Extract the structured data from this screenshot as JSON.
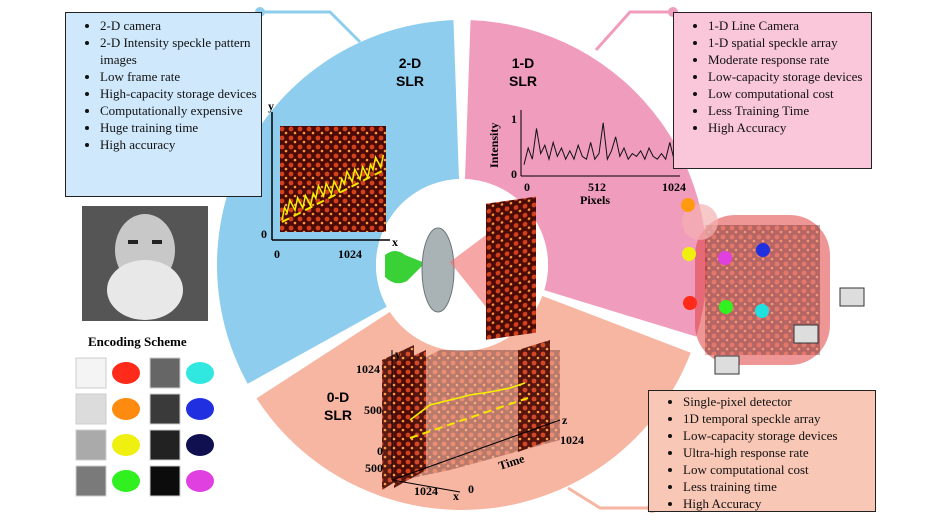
{
  "sectors": {
    "two_d": {
      "label_line1": "2-D",
      "label_line2": "SLR",
      "color": "#8ecdee"
    },
    "one_d": {
      "label_line1": "1-D",
      "label_line2": "SLR",
      "color": "#f09cbc"
    },
    "zero_d": {
      "label_line1": "0-D",
      "label_line2": "SLR",
      "color": "#f6b6a2"
    }
  },
  "boxes": {
    "two_d": {
      "color": "#cfe8fb",
      "items": [
        "2-D camera",
        "2-D Intensity speckle pattern images",
        "Low frame rate",
        "High-capacity storage devices",
        "Computationally expensive",
        "Huge training time",
        "High accuracy"
      ]
    },
    "one_d": {
      "color": "#f9c6da",
      "items": [
        "1-D Line Camera",
        "1-D spatial speckle array",
        "Moderate response rate",
        "Low-capacity storage devices",
        "Low computational cost",
        "Less Training Time",
        "High Accuracy"
      ]
    },
    "zero_d": {
      "color": "#f8c7b6",
      "items": [
        "Single-pixel detector",
        "1D temporal speckle array",
        "Low-capacity storage devices",
        "Ultra-high response rate",
        "Low computational cost",
        "Less training time",
        "High Accuracy"
      ]
    }
  },
  "plot_2d": {
    "y_axis": "y",
    "x_axis": "x",
    "y_max": "1024",
    "x_max": "1024",
    "origin": "0",
    "origin_x": "0"
  },
  "plot_1d": {
    "ylabel": "Intensity",
    "xlabel": "Pixels",
    "y_ticks": [
      "0",
      "1"
    ],
    "x_ticks": [
      "0",
      "512",
      "1024"
    ],
    "signal": [
      0.2,
      0.5,
      0.3,
      0.85,
      0.4,
      0.55,
      0.3,
      0.6,
      0.35,
      0.5,
      0.3,
      0.45,
      0.3,
      0.55,
      0.35,
      0.3,
      0.6,
      0.3,
      0.4,
      0.95,
      0.3,
      0.45,
      0.7,
      0.35,
      0.5,
      0.3,
      0.4,
      0.35,
      0.45,
      0.3,
      0.5,
      0.35,
      0.3,
      0.4,
      0.3,
      0.6,
      0.3
    ]
  },
  "plot_0d": {
    "y_axis": "y",
    "x_axis": "x",
    "z_axis": "z",
    "time_label": "Time",
    "y_ticks": [
      "0",
      "500",
      "1024"
    ],
    "x_ticks": [
      "500",
      "1024"
    ],
    "x_origin": "0",
    "z_tick": "1024"
  },
  "encoding": {
    "title": "Encoding Scheme"
  }
}
